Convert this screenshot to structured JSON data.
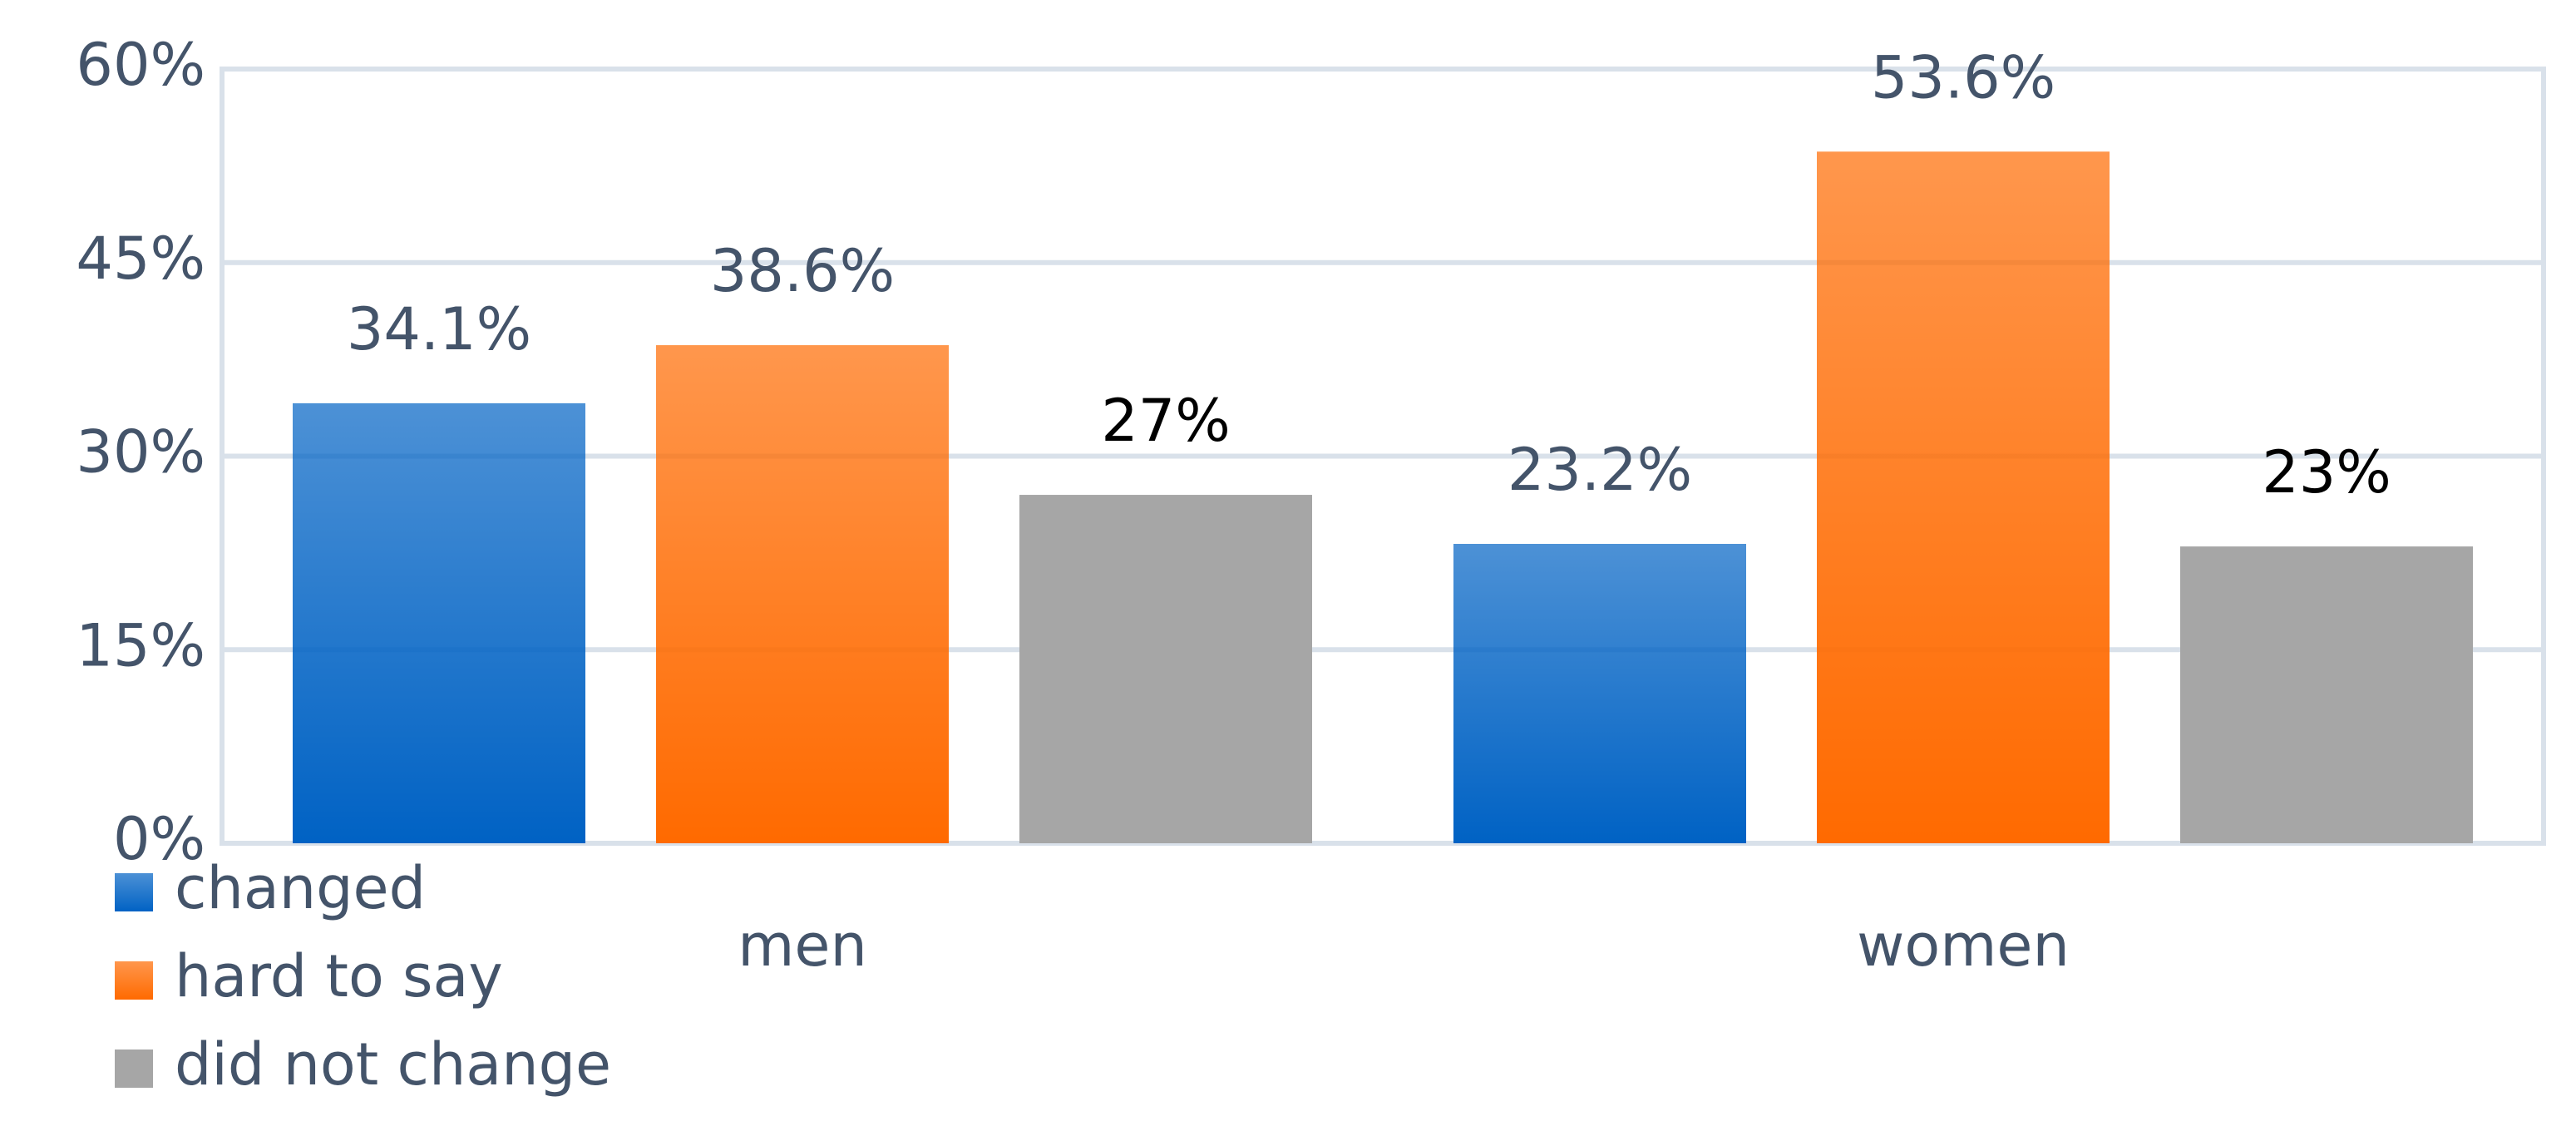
{
  "chart_data": {
    "type": "bar",
    "categories": [
      "men",
      "women"
    ],
    "series": [
      {
        "name": "changed",
        "color": "#0062c4",
        "gradient": true,
        "label_color": "#44546a",
        "values": [
          34.1,
          23.2
        ],
        "value_labels": [
          "34.1%",
          "23.2%"
        ]
      },
      {
        "name": "hard to say",
        "color": "#ff6a00",
        "gradient": true,
        "label_color": "#44546a",
        "values": [
          38.6,
          53.6
        ],
        "value_labels": [
          "38.6%",
          "53.6%"
        ]
      },
      {
        "name": "did not change",
        "color": "#a6a6a6",
        "gradient": false,
        "label_color": "#000000",
        "values": [
          27,
          23
        ],
        "value_labels": [
          "27%",
          "23%"
        ]
      }
    ],
    "ylim": [
      0,
      60
    ],
    "yticks": [
      {
        "value": 0,
        "label": "0%"
      },
      {
        "value": 15,
        "label": "15%"
      },
      {
        "value": 30,
        "label": "30%"
      },
      {
        "value": 45,
        "label": "45%"
      },
      {
        "value": 60,
        "label": "60%"
      }
    ],
    "grid": true,
    "legend": "bottom-left"
  }
}
